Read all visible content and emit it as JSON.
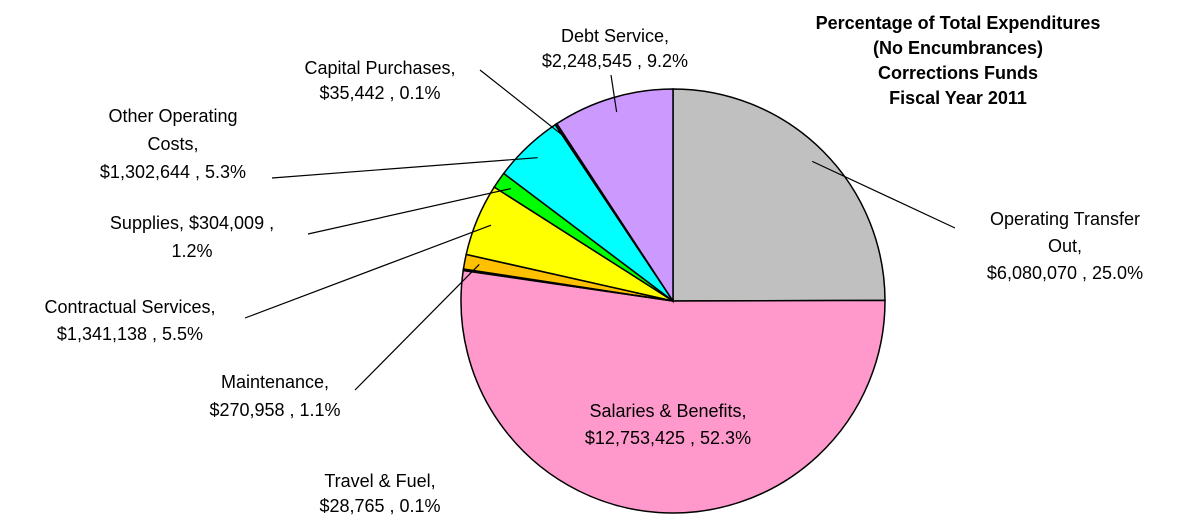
{
  "chart_data": {
    "type": "pie",
    "title": [
      "Percentage of Total Expenditures",
      "(No Encumbrances)",
      "Corrections Funds",
      "Fiscal Year 2011"
    ],
    "categories": [
      "Operating Transfer Out,",
      "Salaries & Benefits,",
      "Travel & Fuel,",
      "Maintenance,",
      "Contractual Services,",
      "Supplies,",
      "Other Operating Costs,",
      "Capital Purchases,",
      "Debt Service,"
    ],
    "values": [
      6080070,
      12753425,
      28765,
      270958,
      1341138,
      304009,
      1302644,
      35442,
      2248545
    ],
    "value_labels": [
      "$6,080,070 ,",
      "$12,753,425 ,",
      "$28,765 ,",
      "$270,958 ,",
      "$1,341,138 ,",
      "$304,009 ,",
      "$1,302,644 ,",
      "$35,442 ,",
      "$2,248,545 ,"
    ],
    "percentages": [
      25.0,
      52.3,
      0.1,
      1.1,
      5.5,
      1.2,
      5.3,
      0.1,
      9.2
    ],
    "percent_labels": [
      "25.0%",
      "52.3%",
      "0.1%",
      "1.1%",
      "5.5%",
      "1.2%",
      "5.3%",
      "0.1%",
      "9.2%"
    ],
    "colors": [
      "#c0c0c0",
      "#ff99cc",
      "#333399",
      "#ffc000",
      "#ffff00",
      "#00ff00",
      "#00ffff",
      "#800080",
      "#cc99ff"
    ]
  }
}
